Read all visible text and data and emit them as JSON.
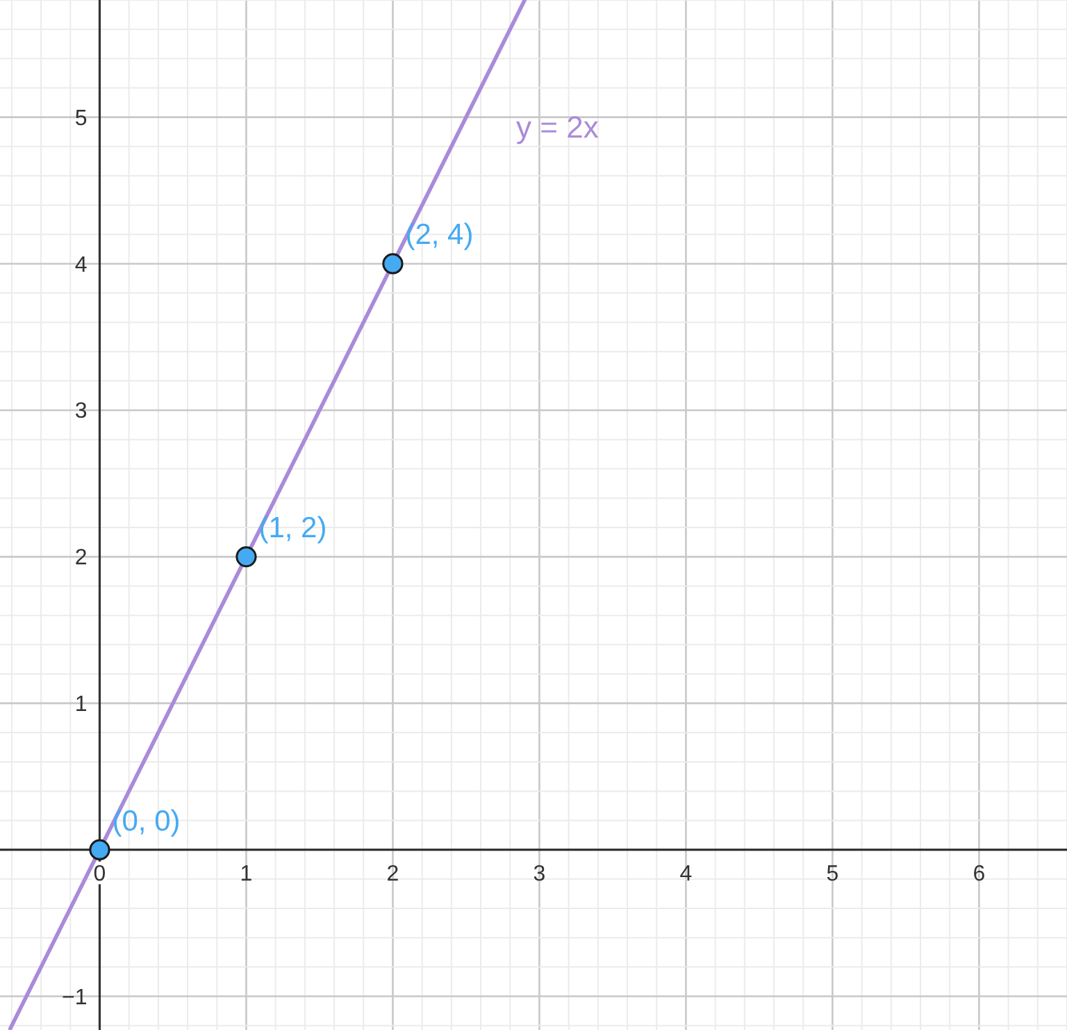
{
  "chart_data": {
    "type": "line",
    "xlim": [
      -0.68,
      6.6
    ],
    "ylim": [
      -1.23,
      5.8
    ],
    "grid": true,
    "xticks": [
      {
        "value": -0.6,
        "label": null
      },
      {
        "value": -0.4,
        "label": null
      },
      {
        "value": -0.2,
        "label": null
      },
      0,
      {
        "value": 0.2,
        "label": null
      },
      {
        "value": 0.4,
        "label": null
      },
      {
        "value": 0.6,
        "label": null
      },
      {
        "value": 0.8,
        "label": null
      },
      1,
      {
        "value": 1.2,
        "label": null
      },
      {
        "value": 1.4,
        "label": null
      },
      {
        "value": 1.6,
        "label": null
      },
      {
        "value": 1.8,
        "label": null
      },
      2,
      {
        "value": 2.2,
        "label": null
      },
      {
        "value": 2.4,
        "label": null
      },
      {
        "value": 2.6,
        "label": null
      },
      {
        "value": 2.8,
        "label": null
      },
      3,
      {
        "value": 3.2,
        "label": null
      },
      {
        "value": 3.4,
        "label": null
      },
      {
        "value": 3.6,
        "label": null
      },
      {
        "value": 3.8,
        "label": null
      },
      4,
      {
        "value": 4.2,
        "label": null
      },
      {
        "value": 4.4,
        "label": null
      },
      {
        "value": 4.6,
        "label": null
      },
      {
        "value": 4.8,
        "label": null
      },
      5,
      {
        "value": 5.2,
        "label": null
      },
      {
        "value": 5.4,
        "label": null
      },
      {
        "value": 5.6,
        "label": null
      },
      {
        "value": 5.8,
        "label": null
      },
      6,
      {
        "value": 6.2,
        "label": null
      },
      {
        "value": 6.4,
        "label": null
      },
      {
        "value": 6.6,
        "label": null
      }
    ],
    "yticks": [
      {
        "value": -1.2,
        "label": null
      },
      {
        "value": -1,
        "label": "−1"
      },
      {
        "value": -0.8,
        "label": null
      },
      {
        "value": -0.6,
        "label": null
      },
      {
        "value": -0.4,
        "label": null
      },
      {
        "value": -0.2,
        "label": null
      },
      {
        "value": 0,
        "label": null
      },
      {
        "value": 0.2,
        "label": null
      },
      {
        "value": 0.4,
        "label": null
      },
      {
        "value": 0.6,
        "label": null
      },
      {
        "value": 0.8,
        "label": null
      },
      1,
      {
        "value": 1.2,
        "label": null
      },
      {
        "value": 1.4,
        "label": null
      },
      {
        "value": 1.6,
        "label": null
      },
      {
        "value": 1.8,
        "label": null
      },
      2,
      {
        "value": 2.2,
        "label": null
      },
      {
        "value": 2.4,
        "label": null
      },
      {
        "value": 2.6,
        "label": null
      },
      {
        "value": 2.8,
        "label": null
      },
      3,
      {
        "value": 3.2,
        "label": null
      },
      {
        "value": 3.4,
        "label": null
      },
      {
        "value": 3.6,
        "label": null
      },
      {
        "value": 3.8,
        "label": null
      },
      4,
      {
        "value": 4.2,
        "label": null
      },
      {
        "value": 4.4,
        "label": null
      },
      {
        "value": 4.6,
        "label": null
      },
      {
        "value": 4.8,
        "label": null
      },
      5,
      {
        "value": 5.2,
        "label": null
      },
      {
        "value": 5.4,
        "label": null
      },
      {
        "value": 5.6,
        "label": null
      },
      {
        "value": 5.8,
        "label": null
      }
    ],
    "series": [
      {
        "name": "y = 2x",
        "color": "#a98bd9",
        "x": [
          -0.61,
          2.9
        ],
        "values": [
          -1.22,
          5.8
        ]
      },
      {
        "type": "scatter",
        "color": "#45aaf2",
        "marker": "circle",
        "x": [
          0,
          1,
          2
        ],
        "values": [
          0,
          2,
          4
        ],
        "value_labels": [
          "(0, 0)",
          "(1, 2)",
          "(2, 4)"
        ]
      }
    ]
  }
}
